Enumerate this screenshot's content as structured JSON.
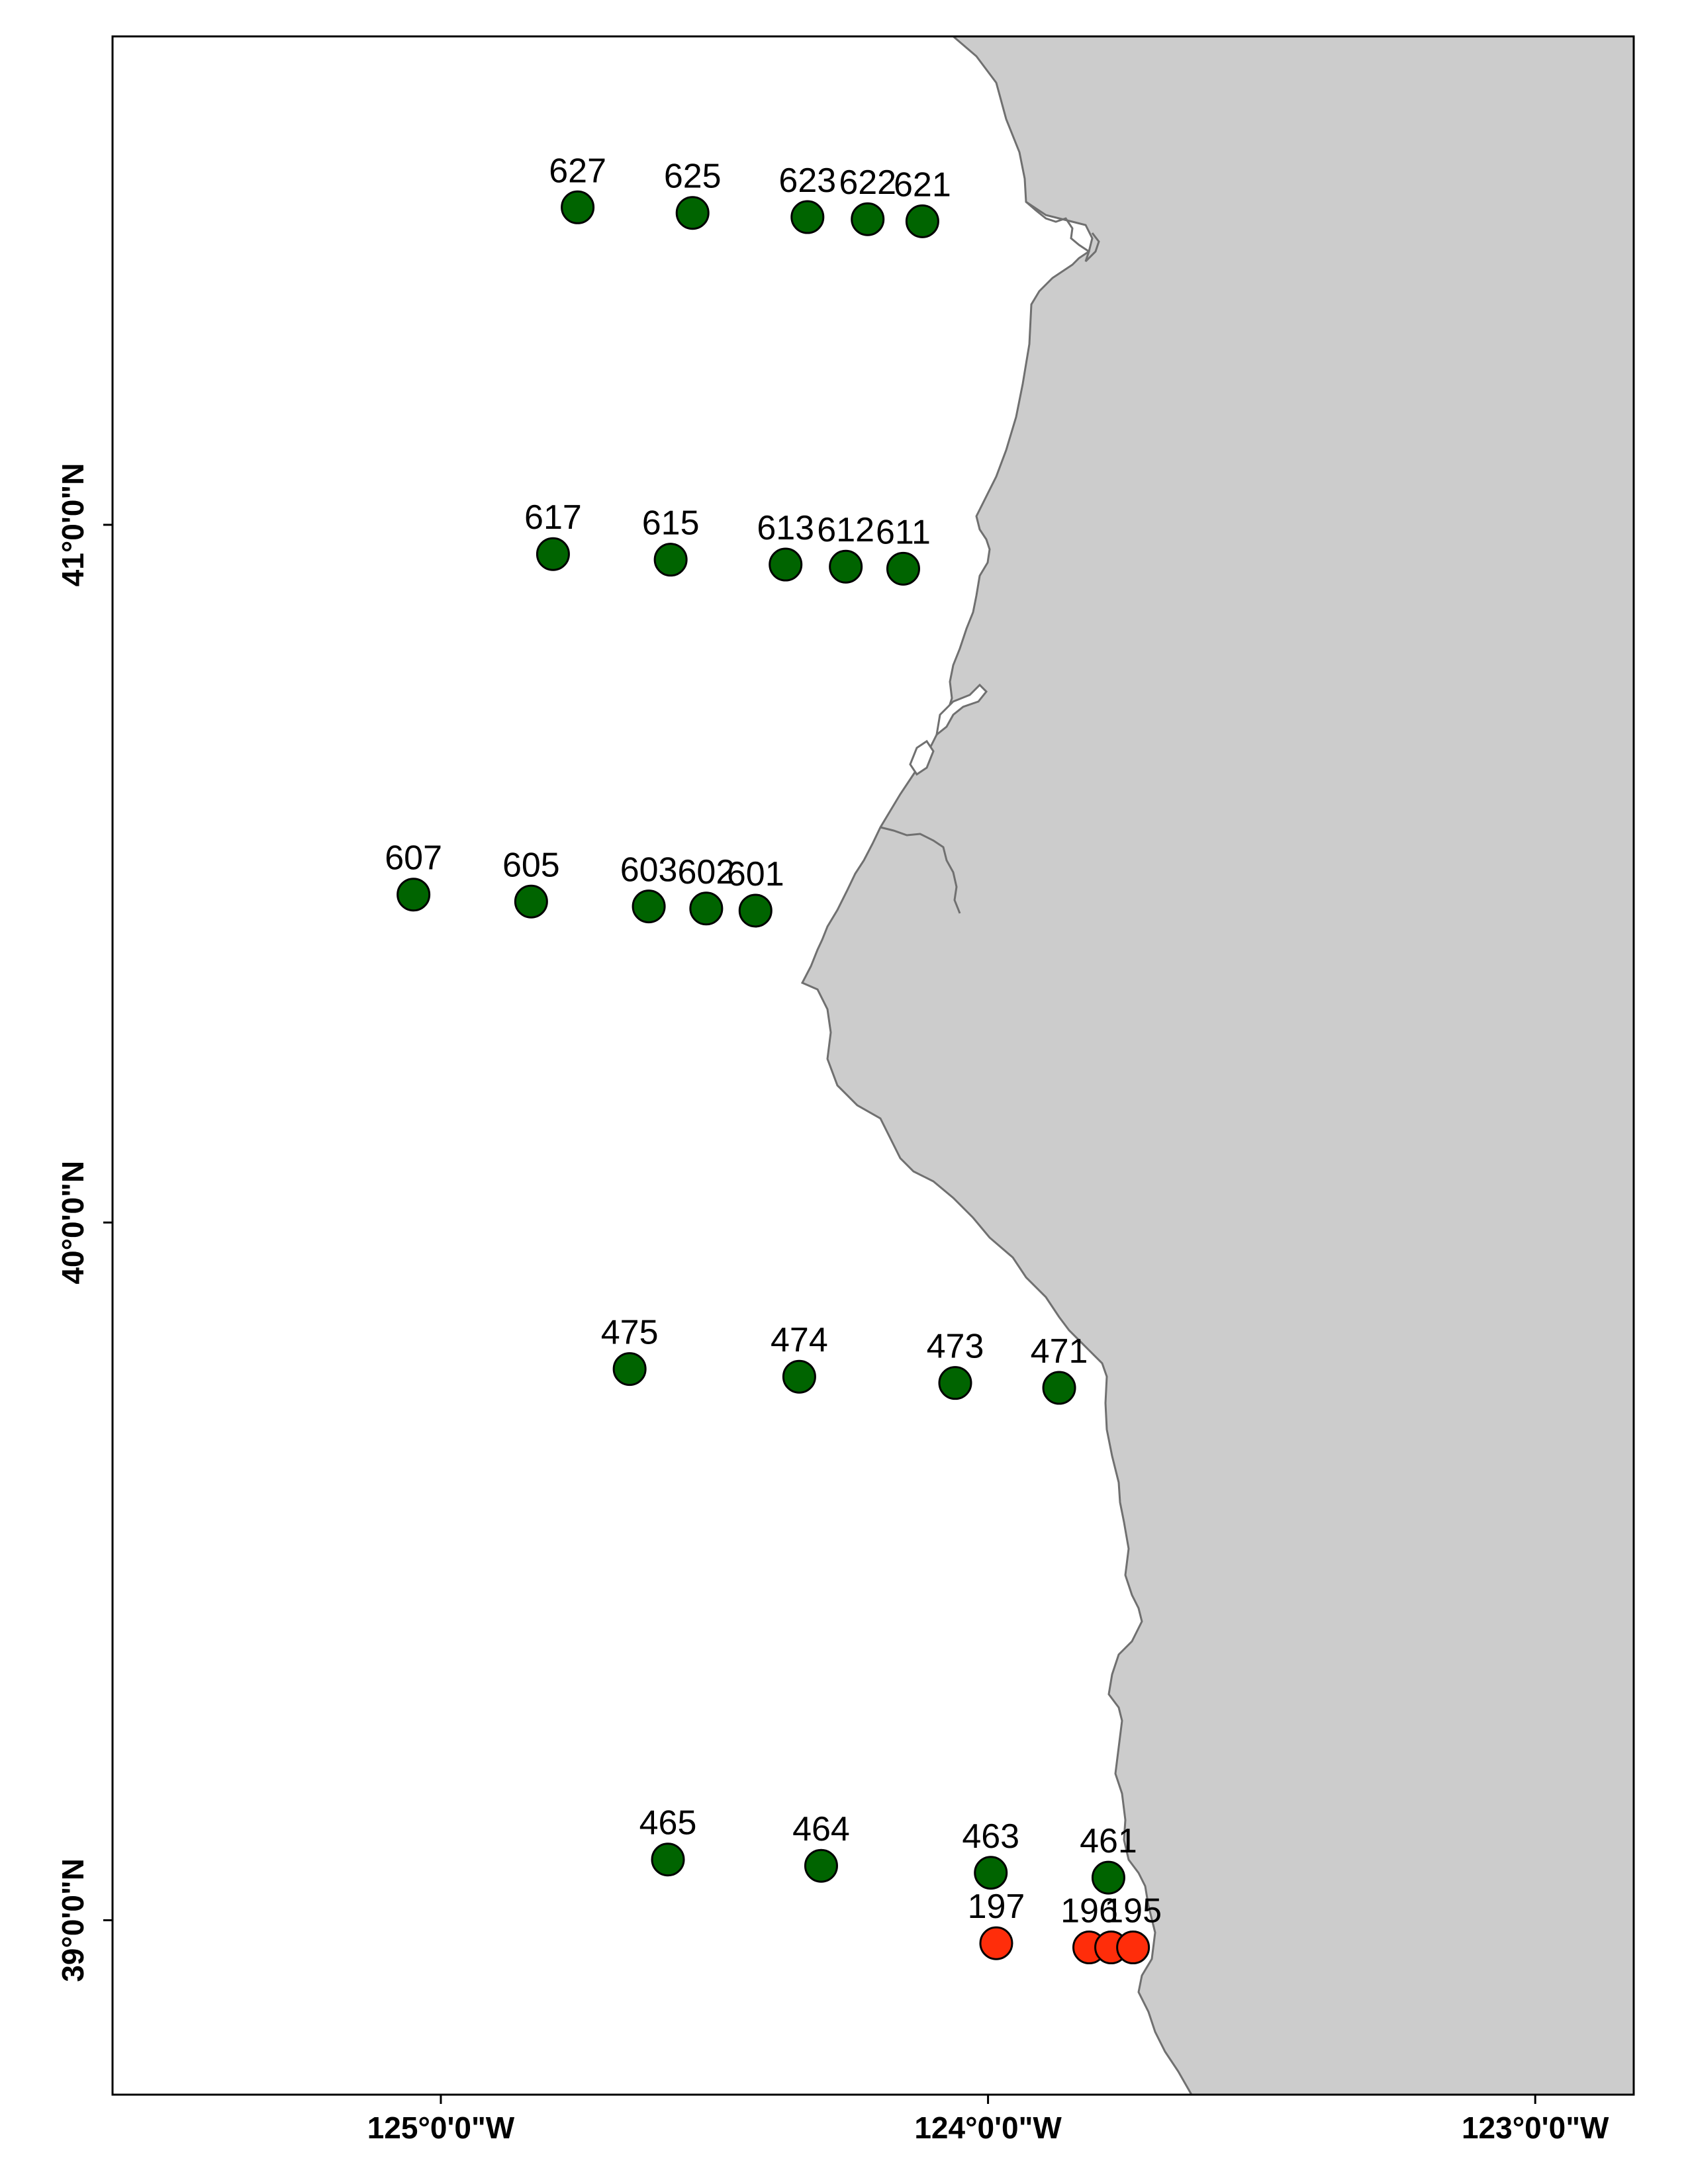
{
  "map": {
    "land_color": "#cccccc",
    "coast_color": "#707070",
    "frame_color": "#000000",
    "extent": {
      "lon": [
        -125.6,
        -122.82
      ],
      "lat": [
        38.75,
        41.7
      ]
    },
    "lon_ticks": [
      {
        "value": -125,
        "label": "125°0'0\"W"
      },
      {
        "value": -124,
        "label": "124°0'0\"W"
      },
      {
        "value": -123,
        "label": "123°0'0\"W"
      }
    ],
    "lat_ticks": [
      {
        "value": 41,
        "label": "41°0'0\"N"
      },
      {
        "value": 40,
        "label": "40°0'0\"N"
      },
      {
        "value": 39,
        "label": "39°0'0\"N"
      }
    ],
    "stations": [
      {
        "id": "627",
        "lon": -124.75,
        "lat": 41.455,
        "color": "#006400"
      },
      {
        "id": "625",
        "lon": -124.54,
        "lat": 41.447,
        "color": "#006400"
      },
      {
        "id": "623",
        "lon": -124.33,
        "lat": 41.441,
        "color": "#006400"
      },
      {
        "id": "622",
        "lon": -124.22,
        "lat": 41.438,
        "color": "#006400"
      },
      {
        "id": "621",
        "lon": -124.12,
        "lat": 41.435,
        "color": "#006400"
      },
      {
        "id": "617",
        "lon": -124.795,
        "lat": 40.958,
        "color": "#006400"
      },
      {
        "id": "615",
        "lon": -124.58,
        "lat": 40.95,
        "color": "#006400"
      },
      {
        "id": "613",
        "lon": -124.37,
        "lat": 40.943,
        "color": "#006400"
      },
      {
        "id": "612",
        "lon": -124.26,
        "lat": 40.94,
        "color": "#006400"
      },
      {
        "id": "611",
        "lon": -124.155,
        "lat": 40.937,
        "color": "#006400"
      },
      {
        "id": "607",
        "lon": -125.05,
        "lat": 40.47,
        "color": "#006400"
      },
      {
        "id": "605",
        "lon": -124.835,
        "lat": 40.46,
        "color": "#006400"
      },
      {
        "id": "603",
        "lon": -124.62,
        "lat": 40.453,
        "color": "#006400"
      },
      {
        "id": "602",
        "lon": -124.515,
        "lat": 40.45,
        "color": "#006400"
      },
      {
        "id": "601",
        "lon": -124.425,
        "lat": 40.447,
        "color": "#006400"
      },
      {
        "id": "475",
        "lon": -124.655,
        "lat": 39.79,
        "color": "#006400"
      },
      {
        "id": "474",
        "lon": -124.345,
        "lat": 39.779,
        "color": "#006400"
      },
      {
        "id": "473",
        "lon": -124.06,
        "lat": 39.77,
        "color": "#006400"
      },
      {
        "id": "471",
        "lon": -123.87,
        "lat": 39.763,
        "color": "#006400"
      },
      {
        "id": "465",
        "lon": -124.585,
        "lat": 39.087,
        "color": "#006400"
      },
      {
        "id": "464",
        "lon": -124.305,
        "lat": 39.078,
        "color": "#006400"
      },
      {
        "id": "463",
        "lon": -123.995,
        "lat": 39.068,
        "color": "#006400"
      },
      {
        "id": "461",
        "lon": -123.78,
        "lat": 39.061,
        "color": "#006400"
      },
      {
        "id": "197",
        "lon": -123.985,
        "lat": 38.967,
        "color": "#ff2d0a"
      },
      {
        "id": "196",
        "lon": -123.815,
        "lat": 38.961,
        "color": "#ff2d0a"
      },
      {
        "id": "",
        "lon": -123.775,
        "lat": 38.961,
        "color": "#ff2d0a"
      },
      {
        "id": "195",
        "lon": -123.735,
        "lat": 38.961,
        "color": "#ff2d0a"
      }
    ]
  }
}
